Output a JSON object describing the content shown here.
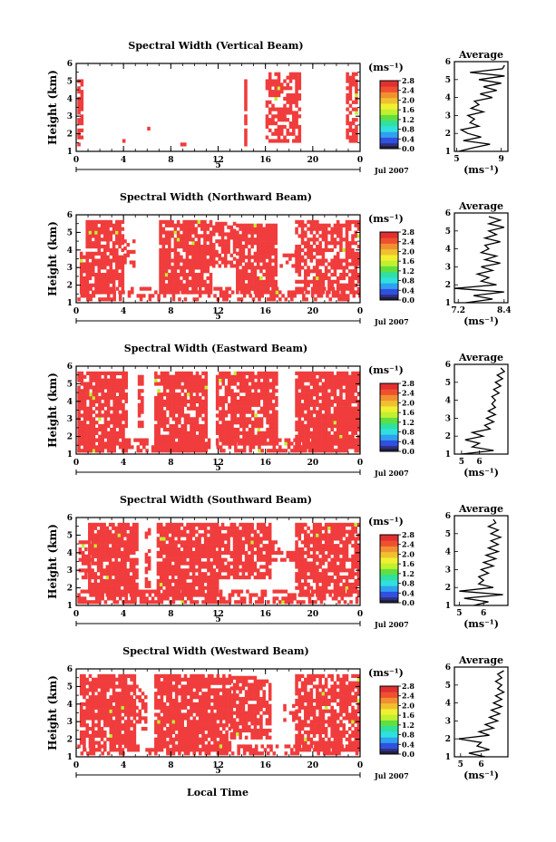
{
  "figure": {
    "shared_xlabel": "Local Time",
    "cmap": [
      "#303080",
      "#3050e0",
      "#30a0f0",
      "#30e0e0",
      "#30e0a0",
      "#60e040",
      "#c0f030",
      "#f0f030",
      "#f0c030",
      "#f09030",
      "#f05030",
      "#e03030"
    ],
    "data_color": "#f03c3c"
  },
  "chart_data": [
    {
      "type": "heatmap",
      "title": "Spectral Width (Vertical Beam)",
      "ylabel": "Height (km)",
      "x_ticks": [
        "0",
        "4",
        "8",
        "12",
        "16",
        "20",
        "0"
      ],
      "day_label": "5",
      "date_label": "Jul 2007",
      "ylim": [
        1,
        6
      ],
      "y_ticks": [
        "1",
        "2",
        "3",
        "4",
        "5",
        "6"
      ],
      "colorbar": {
        "unit": "(ms⁻¹)",
        "ticks": [
          "0.0",
          "0.4",
          "0.8",
          "1.2",
          "1.6",
          "2.0",
          "2.4",
          "2.8"
        ]
      },
      "blocks": [
        [
          0.1,
          0.6,
          1.3,
          5.0
        ],
        [
          3.9,
          4.0,
          1.5,
          1.6
        ],
        [
          6.0,
          6.1,
          2.2,
          2.3
        ],
        [
          8.8,
          9.2,
          1.3,
          1.4
        ],
        [
          14.2,
          14.4,
          1.3,
          5.4
        ],
        [
          16.0,
          19.0,
          1.5,
          5.4
        ],
        [
          22.8,
          23.8,
          1.5,
          5.4
        ]
      ],
      "density": [
        0.65,
        0.3,
        0.85,
        0.55,
        0.7,
        0.6,
        0.75
      ],
      "average": {
        "xlabel": "(ms⁻¹)",
        "xlim": [
          4.8,
          9.6
        ],
        "xticks": [
          "5",
          "9"
        ],
        "title": "Average",
        "profile": [
          [
            1.0,
            5.2
          ],
          [
            1.2,
            6.5
          ],
          [
            1.4,
            8.0
          ],
          [
            1.6,
            5.6
          ],
          [
            1.8,
            7.2
          ],
          [
            2.0,
            6.0
          ],
          [
            2.2,
            5.4
          ],
          [
            2.4,
            7.0
          ],
          [
            2.6,
            6.2
          ],
          [
            2.8,
            6.6
          ],
          [
            3.0,
            6.0
          ],
          [
            3.2,
            7.4
          ],
          [
            3.4,
            6.3
          ],
          [
            3.6,
            7.0
          ],
          [
            3.8,
            6.6
          ],
          [
            4.0,
            8.2
          ],
          [
            4.2,
            7.1
          ],
          [
            4.4,
            8.6
          ],
          [
            4.6,
            7.4
          ],
          [
            4.8,
            9.0
          ],
          [
            5.0,
            7.0
          ],
          [
            5.2,
            9.3
          ],
          [
            5.4,
            6.2
          ],
          [
            5.6,
            9.1
          ],
          [
            5.8,
            9.3
          ]
        ]
      }
    },
    {
      "type": "heatmap",
      "title": "Spectral Width (Northward Beam)",
      "ylabel": "Height (km)",
      "x_ticks": [
        "0",
        "4",
        "8",
        "12",
        "16",
        "20",
        "0"
      ],
      "day_label": "5",
      "date_label": "Jul 2007",
      "ylim": [
        1,
        6
      ],
      "y_ticks": [
        "1",
        "2",
        "3",
        "4",
        "5",
        "6"
      ],
      "colorbar": {
        "unit": "(ms⁻¹)",
        "ticks": [
          "0.0",
          "0.4",
          "0.8",
          "1.2",
          "1.6",
          "2.0",
          "2.4",
          "2.8"
        ]
      },
      "blocks": [
        [
          0.3,
          0.8,
          1.5,
          3.8
        ],
        [
          0.8,
          4.0,
          1.5,
          5.6
        ],
        [
          4.0,
          5.0,
          3.0,
          4.6
        ],
        [
          7.0,
          11.5,
          1.5,
          5.6
        ],
        [
          11.5,
          13.5,
          3.0,
          5.6
        ],
        [
          13.5,
          17.0,
          1.5,
          5.4
        ],
        [
          17.2,
          18.5,
          3.0,
          4.0
        ],
        [
          18.5,
          23.8,
          1.5,
          5.6
        ],
        [
          0.1,
          23.9,
          1.1,
          1.9
        ]
      ],
      "density": [
        0.6,
        0.85,
        0.5,
        0.85,
        0.7,
        0.85,
        0.4,
        0.7,
        0.45
      ],
      "average": {
        "xlabel": "(ms⁻¹)",
        "xlim": [
          7.1,
          8.5
        ],
        "xticks": [
          "7.2",
          "8.4"
        ],
        "title": "Average",
        "profile": [
          [
            1.0,
            7.4
          ],
          [
            1.2,
            8.1
          ],
          [
            1.4,
            7.6
          ],
          [
            1.6,
            8.4
          ],
          [
            1.8,
            7.1
          ],
          [
            2.0,
            8.2
          ],
          [
            2.2,
            7.8
          ],
          [
            2.4,
            8.0
          ],
          [
            2.6,
            7.7
          ],
          [
            2.8,
            8.1
          ],
          [
            3.0,
            7.8
          ],
          [
            3.2,
            8.3
          ],
          [
            3.4,
            7.9
          ],
          [
            3.6,
            8.2
          ],
          [
            3.8,
            7.8
          ],
          [
            4.0,
            8.0
          ],
          [
            4.2,
            7.9
          ],
          [
            4.4,
            8.3
          ],
          [
            4.6,
            7.9
          ],
          [
            4.8,
            8.2
          ],
          [
            5.0,
            8.0
          ],
          [
            5.2,
            8.4
          ],
          [
            5.4,
            8.0
          ],
          [
            5.6,
            8.3
          ],
          [
            5.8,
            8.0
          ]
        ]
      }
    },
    {
      "type": "heatmap",
      "title": "Spectral Width (Eastward Beam)",
      "ylabel": "Height (km)",
      "x_ticks": [
        "0",
        "4",
        "8",
        "12",
        "16",
        "20",
        "0"
      ],
      "day_label": "5",
      "date_label": "Jul 2007",
      "ylim": [
        1,
        6
      ],
      "y_ticks": [
        "1",
        "2",
        "3",
        "4",
        "5",
        "6"
      ],
      "colorbar": {
        "unit": "(ms⁻¹)",
        "ticks": [
          "0.0",
          "0.4",
          "0.8",
          "1.2",
          "1.6",
          "2.0",
          "2.4",
          "2.8"
        ]
      },
      "blocks": [
        [
          0.1,
          4.2,
          1.1,
          5.6
        ],
        [
          5.2,
          5.5,
          2.5,
          5.4
        ],
        [
          6.6,
          11.0,
          1.1,
          5.6
        ],
        [
          11.8,
          17.0,
          1.5,
          5.6
        ],
        [
          18.5,
          23.9,
          1.1,
          5.6
        ],
        [
          0.1,
          23.9,
          1.1,
          1.8
        ]
      ],
      "density": [
        0.85,
        0.5,
        0.85,
        0.85,
        0.9,
        0.6
      ],
      "average": {
        "xlabel": "(ms⁻¹)",
        "xlim": [
          4.6,
          7.6
        ],
        "xticks": [
          "5",
          "6"
        ],
        "title": "Average",
        "profile": [
          [
            1.0,
            5.0
          ],
          [
            1.2,
            6.8
          ],
          [
            1.4,
            5.6
          ],
          [
            1.6,
            6.0
          ],
          [
            1.8,
            5.2
          ],
          [
            2.0,
            6.2
          ],
          [
            2.2,
            5.6
          ],
          [
            2.4,
            6.6
          ],
          [
            2.6,
            6.3
          ],
          [
            2.8,
            6.8
          ],
          [
            3.0,
            6.4
          ],
          [
            3.2,
            6.9
          ],
          [
            3.4,
            6.5
          ],
          [
            3.6,
            6.9
          ],
          [
            3.8,
            6.7
          ],
          [
            4.0,
            6.9
          ],
          [
            4.2,
            6.7
          ],
          [
            4.4,
            7.1
          ],
          [
            4.6,
            6.8
          ],
          [
            4.8,
            7.2
          ],
          [
            5.0,
            6.9
          ],
          [
            5.2,
            7.3
          ],
          [
            5.4,
            7.0
          ],
          [
            5.6,
            7.4
          ],
          [
            5.8,
            7.2
          ]
        ]
      }
    },
    {
      "type": "heatmap",
      "title": "Spectral Width (Southward Beam)",
      "ylabel": "Height (km)",
      "x_ticks": [
        "0",
        "4",
        "8",
        "12",
        "16",
        "20",
        "0"
      ],
      "day_label": "5",
      "date_label": "Jul 2007",
      "ylim": [
        1,
        6
      ],
      "y_ticks": [
        "1",
        "2",
        "3",
        "4",
        "5",
        "6"
      ],
      "colorbar": {
        "unit": "(ms⁻¹)",
        "ticks": [
          "0.0",
          "0.4",
          "0.8",
          "1.2",
          "1.6",
          "2.0",
          "2.4",
          "2.8"
        ]
      },
      "blocks": [
        [
          0.2,
          1.0,
          2.5,
          4.6
        ],
        [
          1.0,
          5.2,
          1.5,
          5.6
        ],
        [
          5.8,
          6.3,
          2.0,
          5.4
        ],
        [
          6.8,
          12.0,
          1.5,
          5.6
        ],
        [
          12.0,
          16.5,
          2.5,
          5.6
        ],
        [
          16.5,
          18.5,
          3.5,
          4.6
        ],
        [
          18.5,
          23.8,
          1.5,
          5.6
        ],
        [
          0.1,
          23.9,
          1.1,
          1.8
        ]
      ],
      "density": [
        0.6,
        0.85,
        0.5,
        0.85,
        0.8,
        0.45,
        0.8,
        0.6
      ],
      "average": {
        "xlabel": "(ms⁻¹)",
        "xlim": [
          4.8,
          7.0
        ],
        "xticks": [
          "5",
          "6"
        ],
        "title": "Average",
        "profile": [
          [
            1.0,
            5.6
          ],
          [
            1.2,
            6.2
          ],
          [
            1.4,
            5.2
          ],
          [
            1.6,
            6.8
          ],
          [
            1.8,
            5.0
          ],
          [
            2.0,
            6.4
          ],
          [
            2.2,
            5.8
          ],
          [
            2.4,
            6.0
          ],
          [
            2.6,
            5.8
          ],
          [
            2.8,
            6.2
          ],
          [
            3.0,
            5.9
          ],
          [
            3.2,
            6.4
          ],
          [
            3.4,
            6.0
          ],
          [
            3.6,
            6.5
          ],
          [
            3.8,
            6.1
          ],
          [
            4.0,
            6.6
          ],
          [
            4.2,
            6.2
          ],
          [
            4.4,
            6.6
          ],
          [
            4.6,
            6.3
          ],
          [
            4.8,
            6.7
          ],
          [
            5.0,
            6.3
          ],
          [
            5.2,
            6.6
          ],
          [
            5.4,
            6.2
          ],
          [
            5.6,
            6.5
          ],
          [
            5.8,
            6.4
          ]
        ]
      }
    },
    {
      "type": "heatmap",
      "title": "Spectral Width (Westward Beam)",
      "ylabel": "Height (km)",
      "x_ticks": [
        "0",
        "4",
        "8",
        "12",
        "16",
        "20",
        "0"
      ],
      "day_label": "5",
      "date_label": "Jul 2007",
      "ylim": [
        1,
        6
      ],
      "y_ticks": [
        "1",
        "2",
        "3",
        "4",
        "5",
        "6"
      ],
      "colorbar": {
        "unit": "(ms⁻¹)",
        "ticks": [
          "0.0",
          "0.4",
          "0.8",
          "1.2",
          "1.6",
          "2.0",
          "2.4",
          "2.8"
        ]
      },
      "blocks": [
        [
          0.3,
          5.0,
          1.3,
          5.6
        ],
        [
          5.0,
          6.0,
          2.5,
          5.0
        ],
        [
          6.6,
          13.0,
          1.3,
          5.6
        ],
        [
          13.0,
          16.5,
          2.0,
          5.6
        ],
        [
          17.5,
          18.5,
          3.0,
          4.0
        ],
        [
          18.5,
          23.9,
          1.3,
          5.6
        ],
        [
          0.1,
          23.9,
          1.1,
          1.7
        ]
      ],
      "density": [
        0.85,
        0.45,
        0.85,
        0.75,
        0.4,
        0.8,
        0.5
      ],
      "average": {
        "xlabel": "(ms⁻¹)",
        "xlim": [
          4.7,
          7.3
        ],
        "xticks": [
          "5",
          "6"
        ],
        "title": "Average",
        "profile": [
          [
            1.0,
            6.2
          ],
          [
            1.2,
            5.4
          ],
          [
            1.4,
            6.4
          ],
          [
            1.6,
            5.8
          ],
          [
            1.8,
            6.0
          ],
          [
            2.0,
            4.9
          ],
          [
            2.2,
            6.4
          ],
          [
            2.4,
            5.9
          ],
          [
            2.6,
            6.6
          ],
          [
            2.8,
            6.2
          ],
          [
            3.0,
            6.8
          ],
          [
            3.2,
            6.4
          ],
          [
            3.4,
            6.9
          ],
          [
            3.6,
            6.5
          ],
          [
            3.8,
            7.0
          ],
          [
            4.0,
            6.6
          ],
          [
            4.2,
            7.0
          ],
          [
            4.4,
            6.7
          ],
          [
            4.6,
            7.1
          ],
          [
            4.8,
            6.8
          ],
          [
            5.0,
            7.0
          ],
          [
            5.2,
            6.7
          ],
          [
            5.4,
            7.0
          ],
          [
            5.6,
            6.8
          ],
          [
            5.8,
            7.1
          ]
        ]
      }
    }
  ]
}
